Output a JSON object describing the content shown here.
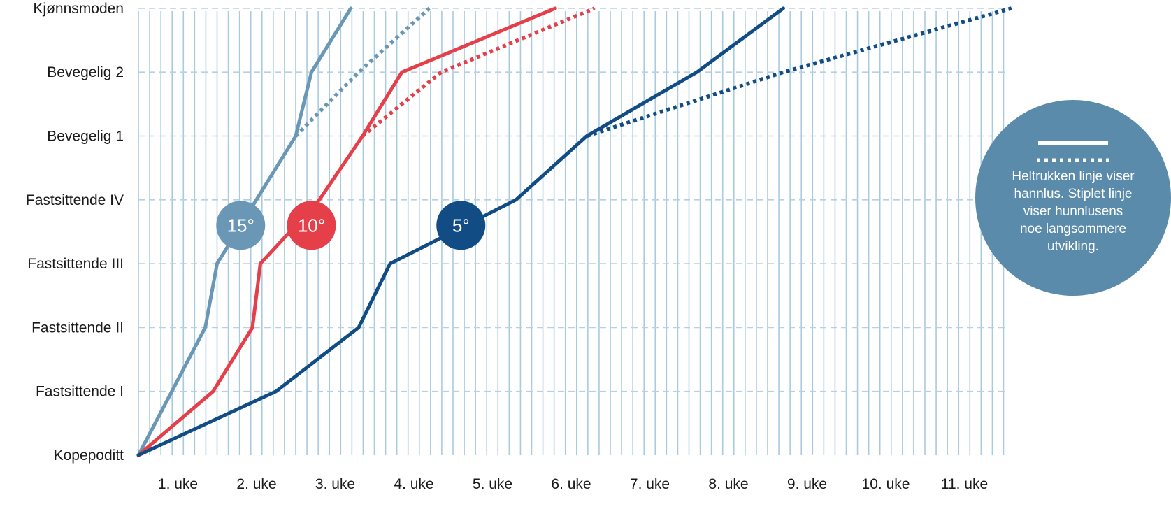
{
  "chart_data": {
    "type": "line",
    "title": "",
    "xlabel": "",
    "ylabel": "",
    "y_categories": [
      "Kopepoditt",
      "Fastsittende I",
      "Fastsittende II",
      "Fastsittende III",
      "Fastsittende IV",
      "Bevegelig 1",
      "Bevegelig 2",
      "Kjønnsmoden"
    ],
    "x_ticks": [
      {
        "label": "1. uke",
        "value": 1
      },
      {
        "label": "2. uke",
        "value": 2
      },
      {
        "label": "3. uke",
        "value": 3
      },
      {
        "label": "4. uke",
        "value": 4
      },
      {
        "label": "5. uke",
        "value": 5
      },
      {
        "label": "6. uke",
        "value": 6
      },
      {
        "label": "7. uke",
        "value": 7
      },
      {
        "label": "8. uke",
        "value": 8
      },
      {
        "label": "9. uke",
        "value": 9
      },
      {
        "label": "10. uke",
        "value": 10
      },
      {
        "label": "11. uke",
        "value": 11
      }
    ],
    "xlim": [
      0,
      11.6
    ],
    "ylim": [
      0,
      7
    ],
    "grid": {
      "vertical_lines_per_week": 7,
      "horizontal": "dashed"
    },
    "series": [
      {
        "name": "15°",
        "sex": "male",
        "style": "solid",
        "color": "#6a97b5",
        "points": [
          [
            0,
            0
          ],
          [
            0.85,
            2
          ],
          [
            1.0,
            3
          ],
          [
            2.0,
            5
          ],
          [
            2.2,
            6
          ],
          [
            2.7,
            7
          ]
        ]
      },
      {
        "name": "15°",
        "sex": "female",
        "style": "dotted",
        "color": "#6a97b5",
        "points": [
          [
            2.0,
            5
          ],
          [
            2.8,
            6
          ],
          [
            3.7,
            7
          ]
        ]
      },
      {
        "name": "10°",
        "sex": "male",
        "style": "solid",
        "color": "#e5404a",
        "points": [
          [
            0,
            0
          ],
          [
            0.95,
            1
          ],
          [
            1.45,
            2
          ],
          [
            1.55,
            3
          ],
          [
            2.3,
            4
          ],
          [
            2.85,
            5
          ],
          [
            3.35,
            6
          ],
          [
            5.3,
            7
          ]
        ]
      },
      {
        "name": "10°",
        "sex": "female",
        "style": "dotted",
        "color": "#e5404a",
        "points": [
          [
            2.85,
            5
          ],
          [
            3.85,
            6
          ],
          [
            5.8,
            7
          ]
        ]
      },
      {
        "name": "5°",
        "sex": "male",
        "style": "solid",
        "color": "#124c85",
        "points": [
          [
            0,
            0
          ],
          [
            1.75,
            1
          ],
          [
            2.8,
            2
          ],
          [
            3.2,
            3
          ],
          [
            4.8,
            4
          ],
          [
            5.7,
            5
          ],
          [
            7.1,
            6
          ],
          [
            8.2,
            7
          ]
        ]
      },
      {
        "name": "5°",
        "sex": "female",
        "style": "dotted",
        "color": "#124c85",
        "points": [
          [
            5.7,
            5
          ],
          [
            8.2,
            6
          ],
          [
            11.1,
            7
          ]
        ]
      }
    ],
    "badges": [
      {
        "label": "15°",
        "color": "#6a97b5",
        "at": [
          1.3,
          3.6
        ]
      },
      {
        "label": "10°",
        "color": "#e5404a",
        "at": [
          2.2,
          3.6
        ]
      },
      {
        "label": "5°",
        "color": "#124c85",
        "at": [
          4.1,
          3.6
        ]
      }
    ],
    "legend": {
      "placement": "right",
      "color": "#5b8bab",
      "lines": [
        "Heltrukken linje viser",
        "hannlus. Stiplet linje",
        "viser hunnlusens",
        "noe langsommere",
        "utvikling."
      ]
    }
  }
}
